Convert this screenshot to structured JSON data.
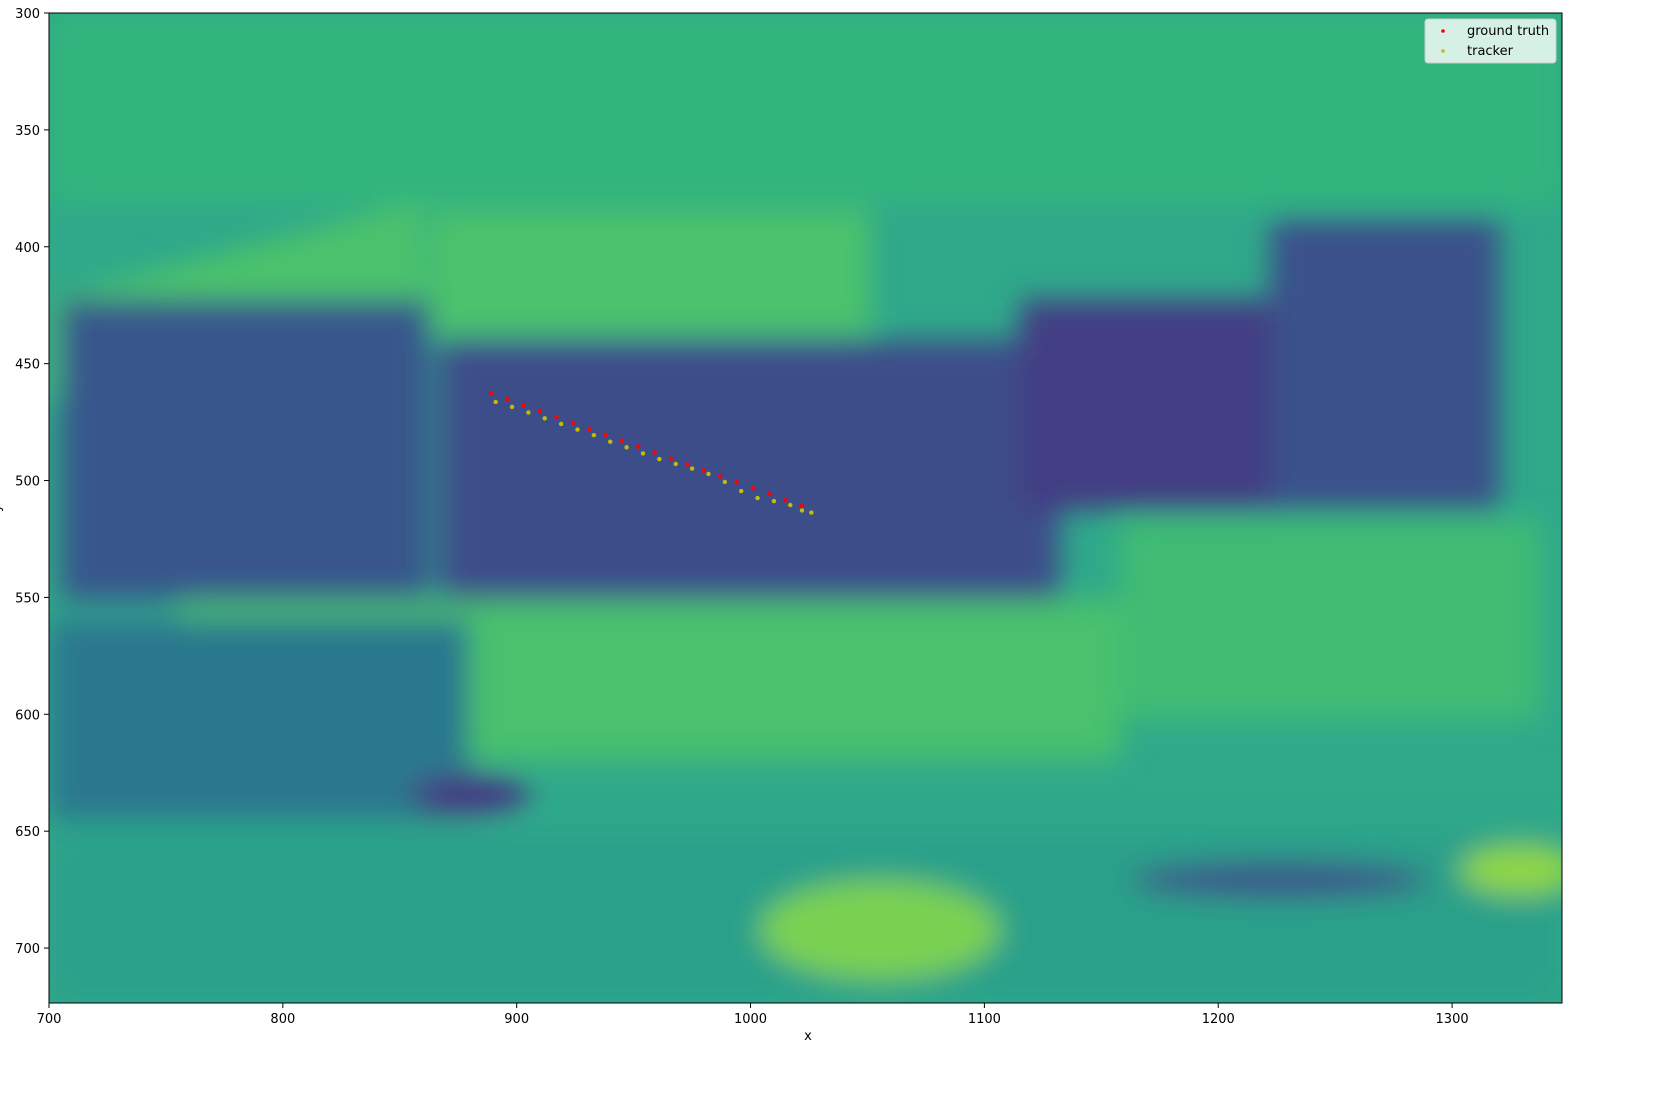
{
  "chart_data": {
    "type": "scatter",
    "xlabel": "x",
    "ylabel": "y",
    "xlim": [
      700,
      1347
    ],
    "ylim": [
      723.5,
      300
    ],
    "xticks": [
      700,
      800,
      900,
      1000,
      1100,
      1200,
      1300
    ],
    "yticks": [
      300,
      350,
      400,
      450,
      500,
      550,
      600,
      650,
      700
    ],
    "legend": "upper right",
    "series": [
      {
        "name": "ground truth",
        "color": "#ff0000",
        "x": [
          889,
          896,
          903,
          910,
          917,
          924,
          931,
          938,
          945,
          952,
          959,
          966,
          973,
          980,
          987,
          994,
          1001,
          1008,
          1015,
          1022
        ],
        "values": [
          462.6,
          465.1,
          467.7,
          470.2,
          472.8,
          475.3,
          477.9,
          480.4,
          482.9,
          485.5,
          488.0,
          490.6,
          493.1,
          495.7,
          498.2,
          500.7,
          503.3,
          505.8,
          508.4,
          510.9
        ]
      },
      {
        "name": "tracker",
        "color": "#bfbf00",
        "x": [
          891,
          898,
          905,
          912,
          919,
          926,
          933,
          940,
          947,
          954,
          961,
          968,
          975,
          982,
          989,
          996,
          1003,
          1010,
          1017,
          1022,
          1026
        ],
        "values": [
          466.4,
          468.5,
          470.9,
          473.4,
          475.8,
          478.2,
          480.6,
          483.4,
          485.8,
          488.4,
          490.8,
          492.9,
          494.9,
          497.2,
          500.6,
          504.5,
          507.5,
          508.8,
          510.5,
          512.8,
          513.7
        ]
      }
    ]
  }
}
